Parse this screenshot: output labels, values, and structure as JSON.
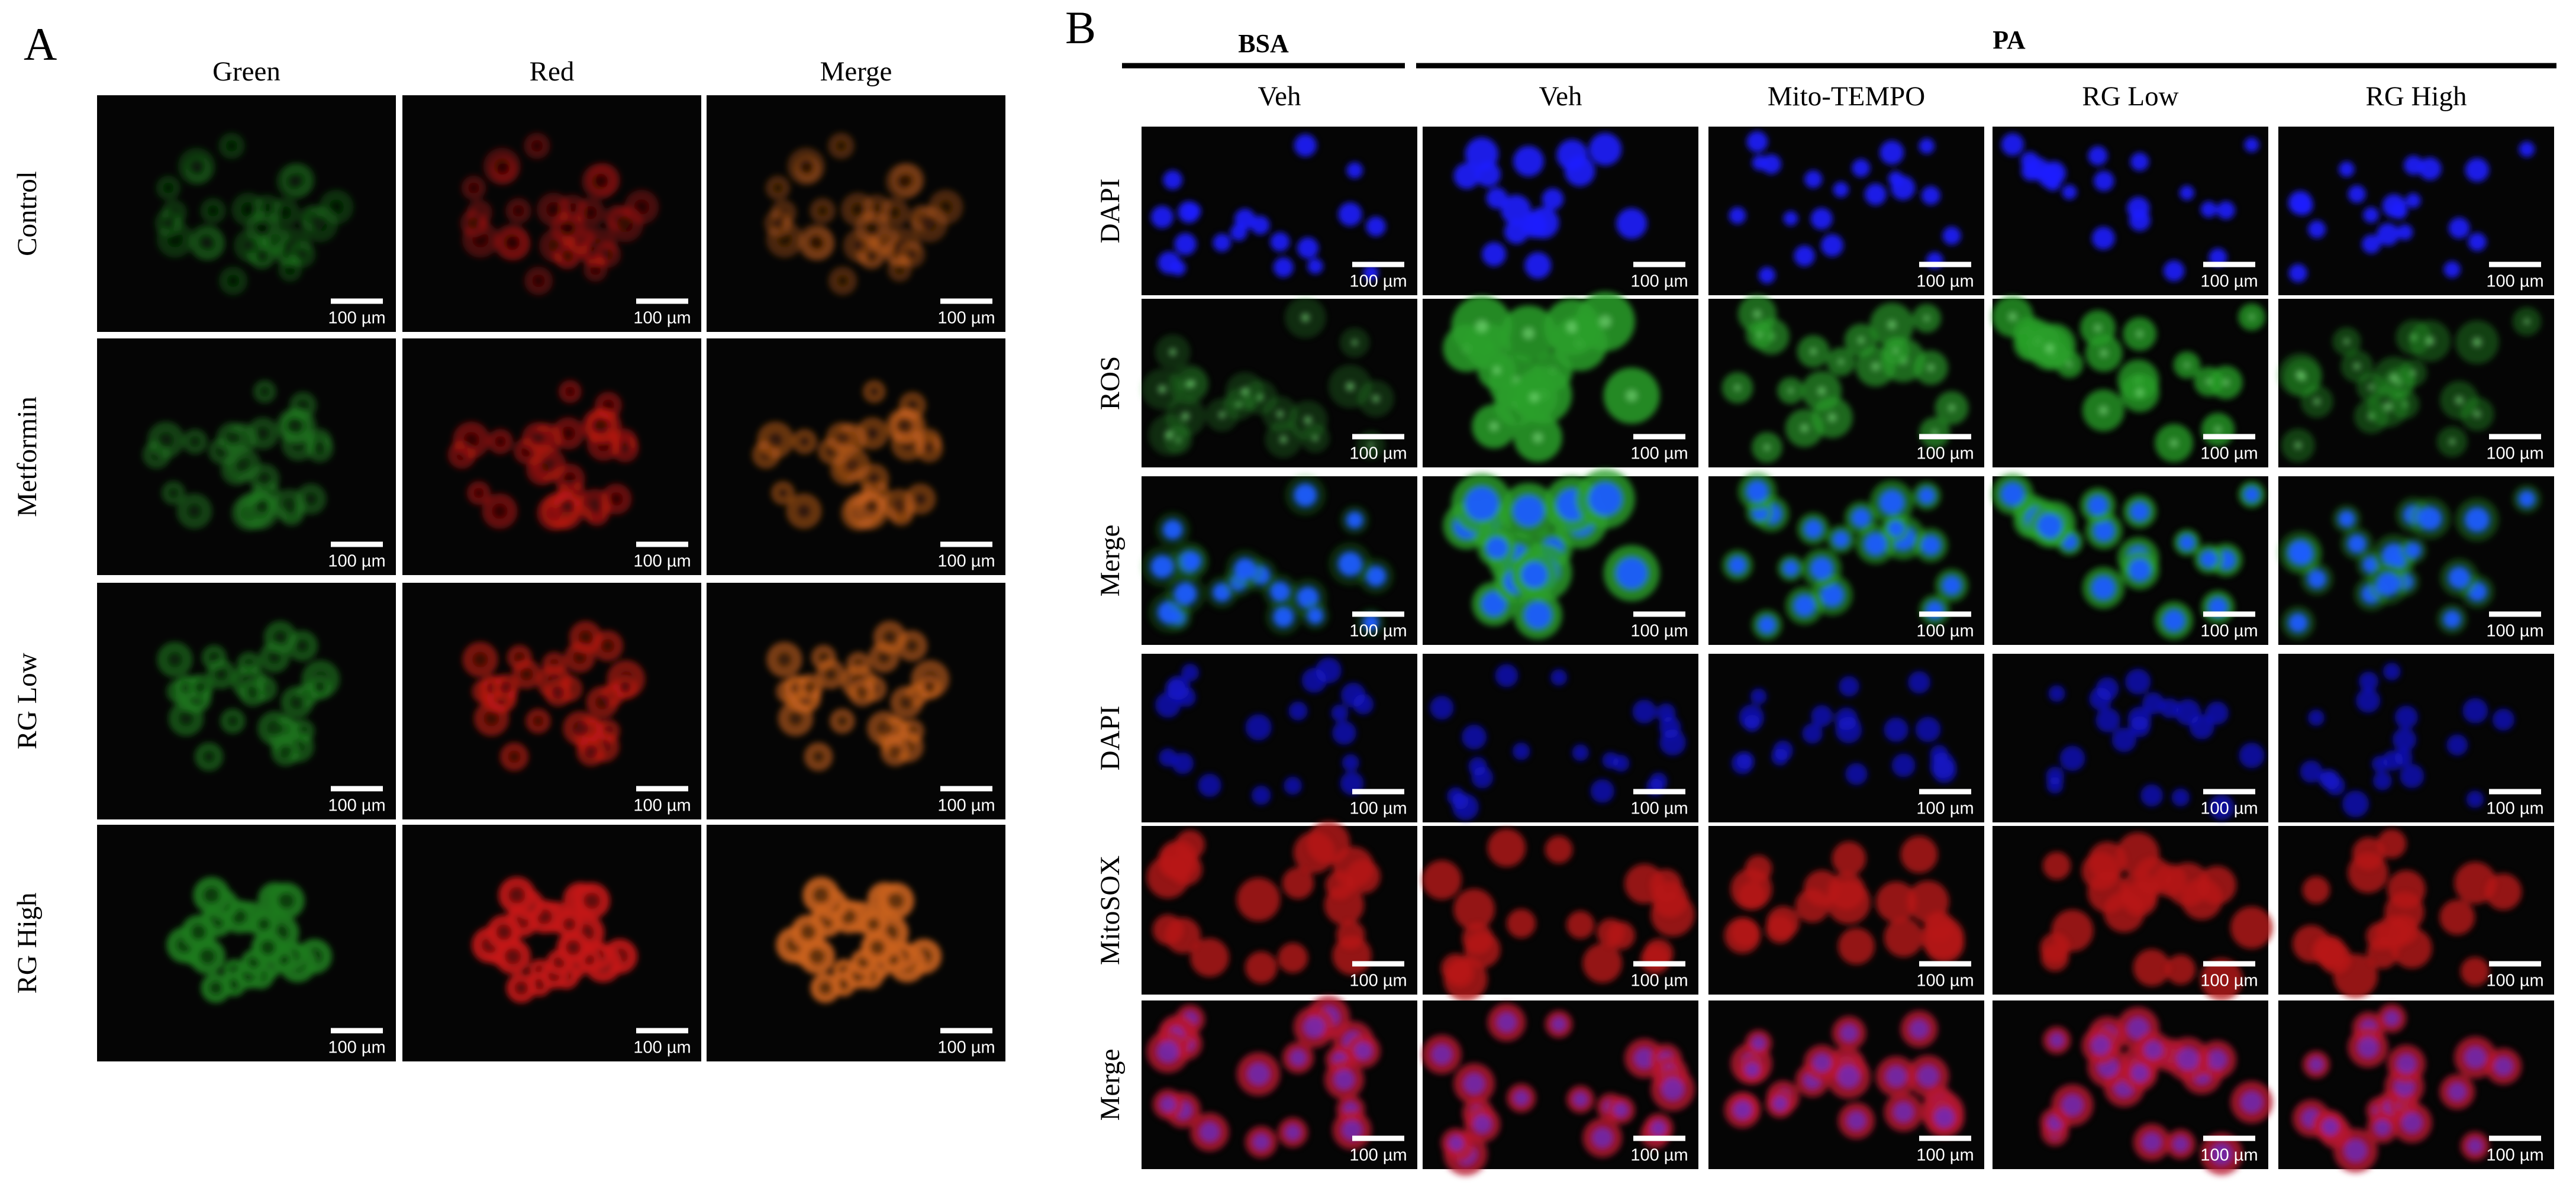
{
  "panel_a": {
    "label": "A",
    "columns": [
      "Green",
      "Red",
      "Merge"
    ],
    "rows": [
      "Control",
      "Metformin",
      "RG Low",
      "RG High"
    ],
    "scale_bar": "100 µm"
  },
  "panel_b": {
    "label": "B",
    "groups": [
      "BSA",
      "PA"
    ],
    "columns": [
      "Veh",
      "Veh",
      "Mito-TEMPO",
      "RG Low",
      "RG High"
    ],
    "rows": [
      "DAPI",
      "ROS",
      "Merge",
      "DAPI",
      "MitoSOX",
      "Merge"
    ],
    "scale_bar": "100 µm"
  }
}
